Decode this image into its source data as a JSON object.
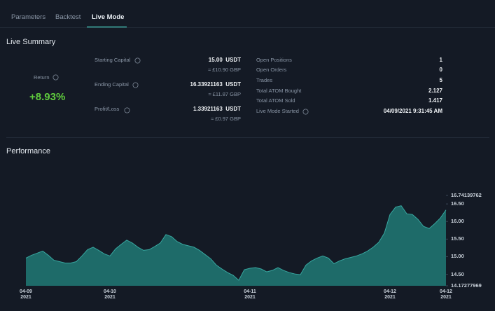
{
  "tabs": [
    "Parameters",
    "Backtest",
    "Live Mode"
  ],
  "live_summary": {
    "title": "Live Summary",
    "return": {
      "label": "Return",
      "value": "+8.93%"
    },
    "capital": [
      {
        "label": "Starting Capital",
        "value": "15.00  USDT",
        "sub": "≈ £10.90 GBP"
      },
      {
        "label": "Ending Capital",
        "value": "16.33921163  USDT",
        "sub": "≈ £11.87 GBP"
      },
      {
        "label": "Profit/Loss",
        "value": "1.33921163  USDT",
        "sub": "≈ £0.97 GBP"
      }
    ],
    "stats": [
      {
        "label": "Open Positions",
        "value": 1
      },
      {
        "label": "Open Orders",
        "value": 0
      },
      {
        "label": "Trades",
        "value": 5
      },
      {
        "label": "Total ATOM Bought",
        "value": 2.127
      },
      {
        "label": "Total ATOM Sold",
        "value": 1.417
      },
      {
        "label": "Live Mode Started",
        "value": "04/09/2021 9:31:45 AM"
      }
    ]
  },
  "chart_data": {
    "type": "area",
    "title": "Performance",
    "color": "#1e6b69",
    "line_color": "#38a7a0",
    "ylim": [
      14.17277969,
      16.74139762
    ],
    "yticks": [
      {
        "value": 14.5,
        "label": "14.50"
      },
      {
        "value": 15,
        "label": "15.00"
      },
      {
        "value": 15.5,
        "label": "15.50"
      },
      {
        "value": 16,
        "label": "16.00"
      },
      {
        "value": 16.5,
        "label": "16.50"
      }
    ],
    "categories": [
      "04-09\n2021",
      null,
      null,
      null,
      null,
      null,
      null,
      null,
      null,
      null,
      null,
      null,
      null,
      null,
      null,
      "04-10\n2021",
      null,
      null,
      null,
      null,
      null,
      null,
      null,
      null,
      null,
      null,
      null,
      null,
      null,
      null,
      null,
      null,
      null,
      null,
      null,
      null,
      null,
      null,
      null,
      null,
      "04-11\n2021",
      null,
      null,
      null,
      null,
      null,
      null,
      null,
      null,
      null,
      null,
      null,
      null,
      null,
      null,
      null,
      null,
      null,
      null,
      null,
      null,
      null,
      null,
      null,
      null,
      "04-12\n2021",
      null,
      null,
      null,
      null,
      null,
      null,
      null,
      null,
      null,
      "04-12\n2021"
    ],
    "values": [
      14.96,
      15.04,
      15.1,
      15.16,
      15.04,
      14.9,
      14.86,
      14.82,
      14.82,
      14.86,
      15.02,
      15.2,
      15.27,
      15.18,
      15.08,
      15.02,
      15.22,
      15.35,
      15.47,
      15.39,
      15.27,
      15.18,
      15.2,
      15.29,
      15.39,
      15.63,
      15.57,
      15.43,
      15.35,
      15.31,
      15.27,
      15.18,
      15.06,
      14.94,
      14.76,
      14.65,
      14.55,
      14.47,
      14.33,
      14.63,
      14.67,
      14.69,
      14.65,
      14.57,
      14.61,
      14.69,
      14.61,
      14.55,
      14.51,
      14.49,
      14.76,
      14.88,
      14.96,
      15.02,
      14.96,
      14.8,
      14.88,
      14.94,
      14.98,
      15.02,
      15.08,
      15.16,
      15.27,
      15.41,
      15.67,
      16.2,
      16.41,
      16.45,
      16.22,
      16.2,
      16.06,
      15.86,
      15.8,
      15.94,
      16.1,
      16.33
    ]
  }
}
